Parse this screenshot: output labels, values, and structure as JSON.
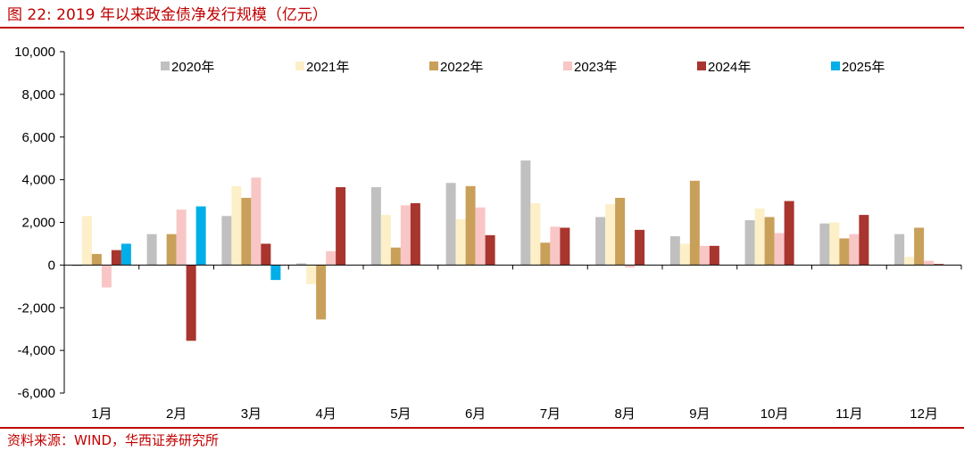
{
  "header": {
    "title": "图 22:  2019 年以来政金债净发行规模（亿元）"
  },
  "footer": {
    "source": "资料来源：WIND，华西证券研究所"
  },
  "colors": {
    "accent": "#c00000",
    "series": [
      "#c0c0c0",
      "#fdf0c8",
      "#c9a05a",
      "#f9c6c6",
      "#a8352e",
      "#00aee8"
    ]
  },
  "chart_data": {
    "type": "bar",
    "title": "2019 年以来政金债净发行规模（亿元）",
    "xlabel": "",
    "ylabel": "",
    "ylim": [
      -6000,
      10000
    ],
    "yticks": [
      -6000,
      -4000,
      -2000,
      0,
      2000,
      4000,
      6000,
      8000,
      10000
    ],
    "ytick_labels": [
      "-6,000",
      "-4,000",
      "-2,000",
      "0",
      "2,000",
      "4,000",
      "6,000",
      "8,000",
      "10,000"
    ],
    "grid": false,
    "legend_position": "top",
    "categories": [
      "1月",
      "2月",
      "3月",
      "4月",
      "5月",
      "6月",
      "7月",
      "8月",
      "9月",
      "10月",
      "11月",
      "12月"
    ],
    "series": [
      {
        "name": "2020年",
        "values": [
          -50,
          1450,
          2300,
          80,
          3650,
          3850,
          4900,
          2250,
          1350,
          2100,
          1950,
          1450
        ]
      },
      {
        "name": "2021年",
        "values": [
          2300,
          0,
          3700,
          -900,
          2350,
          2150,
          2900,
          2850,
          1000,
          2650,
          2000,
          380
        ]
      },
      {
        "name": "2022年",
        "values": [
          520,
          1450,
          3150,
          -2550,
          820,
          3700,
          1050,
          3150,
          3950,
          2250,
          1250,
          1750
        ]
      },
      {
        "name": "2023年",
        "values": [
          -1050,
          2600,
          4100,
          650,
          2800,
          2700,
          1800,
          -120,
          900,
          1500,
          1450,
          200
        ]
      },
      {
        "name": "2024年",
        "values": [
          700,
          -3550,
          1000,
          3650,
          2900,
          1400,
          1750,
          1650,
          900,
          3000,
          2350,
          50
        ]
      },
      {
        "name": "2025年",
        "values": [
          1000,
          2750,
          -700,
          null,
          null,
          null,
          null,
          null,
          null,
          null,
          null,
          null
        ]
      }
    ]
  }
}
